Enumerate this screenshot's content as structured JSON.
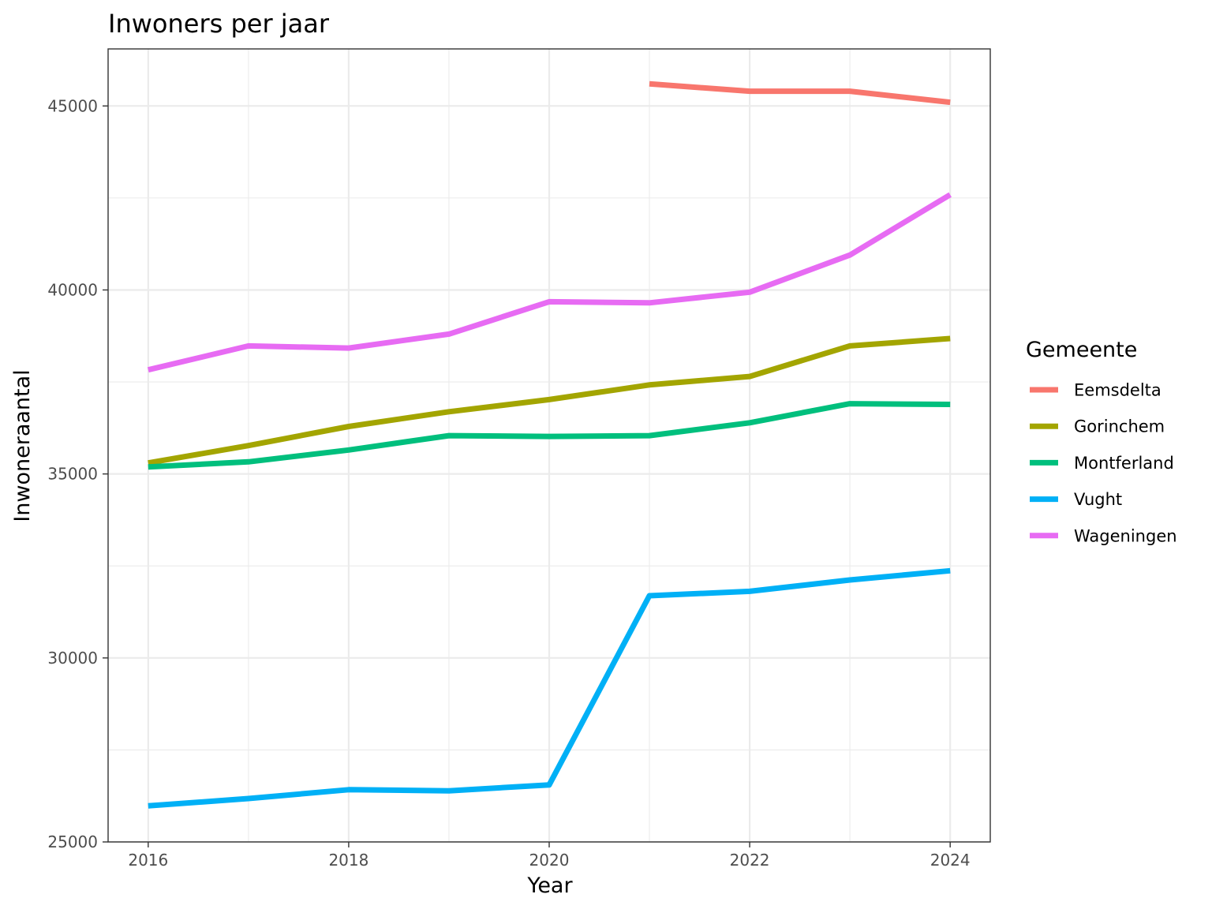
{
  "chart_data": {
    "type": "line",
    "title": "Inwoners per jaar",
    "xlabel": "Year",
    "ylabel": "Inwoneraantal",
    "xlim": [
      2015.6,
      2024.4
    ],
    "ylim": [
      25000,
      46550
    ],
    "x_ticks": [
      2016,
      2018,
      2020,
      2022,
      2024
    ],
    "x_tick_labels": [
      "2016",
      "2018",
      "2020",
      "2022",
      "2024"
    ],
    "y_ticks": [
      25000,
      30000,
      35000,
      40000,
      45000
    ],
    "y_tick_labels": [
      "25000",
      "30000",
      "35000",
      "40000",
      "45000"
    ],
    "grid": true,
    "legend": {
      "title": "Gemeente",
      "position": "right"
    },
    "x": [
      2016,
      2017,
      2018,
      2019,
      2020,
      2021,
      2022,
      2023,
      2024
    ],
    "series": [
      {
        "name": "Eemsdelta",
        "color": "#F8766D",
        "values": [
          null,
          null,
          null,
          null,
          null,
          45600,
          45400,
          45400,
          45100
        ]
      },
      {
        "name": "Gorinchem",
        "color": "#A3A500",
        "values": [
          35300,
          35770,
          36290,
          36690,
          37020,
          37420,
          37650,
          38480,
          38680
        ]
      },
      {
        "name": "Montferland",
        "color": "#00BF7D",
        "values": [
          35190,
          35330,
          35650,
          36040,
          36020,
          36040,
          36390,
          36910,
          36890
        ]
      },
      {
        "name": "Vught",
        "color": "#00B0F6",
        "values": [
          25980,
          26180,
          26420,
          26390,
          26550,
          31690,
          31810,
          32120,
          32370
        ]
      },
      {
        "name": "Wageningen",
        "color": "#E76BF3",
        "values": [
          37830,
          38480,
          38420,
          38800,
          39680,
          39650,
          39940,
          40950,
          42590
        ]
      }
    ]
  }
}
